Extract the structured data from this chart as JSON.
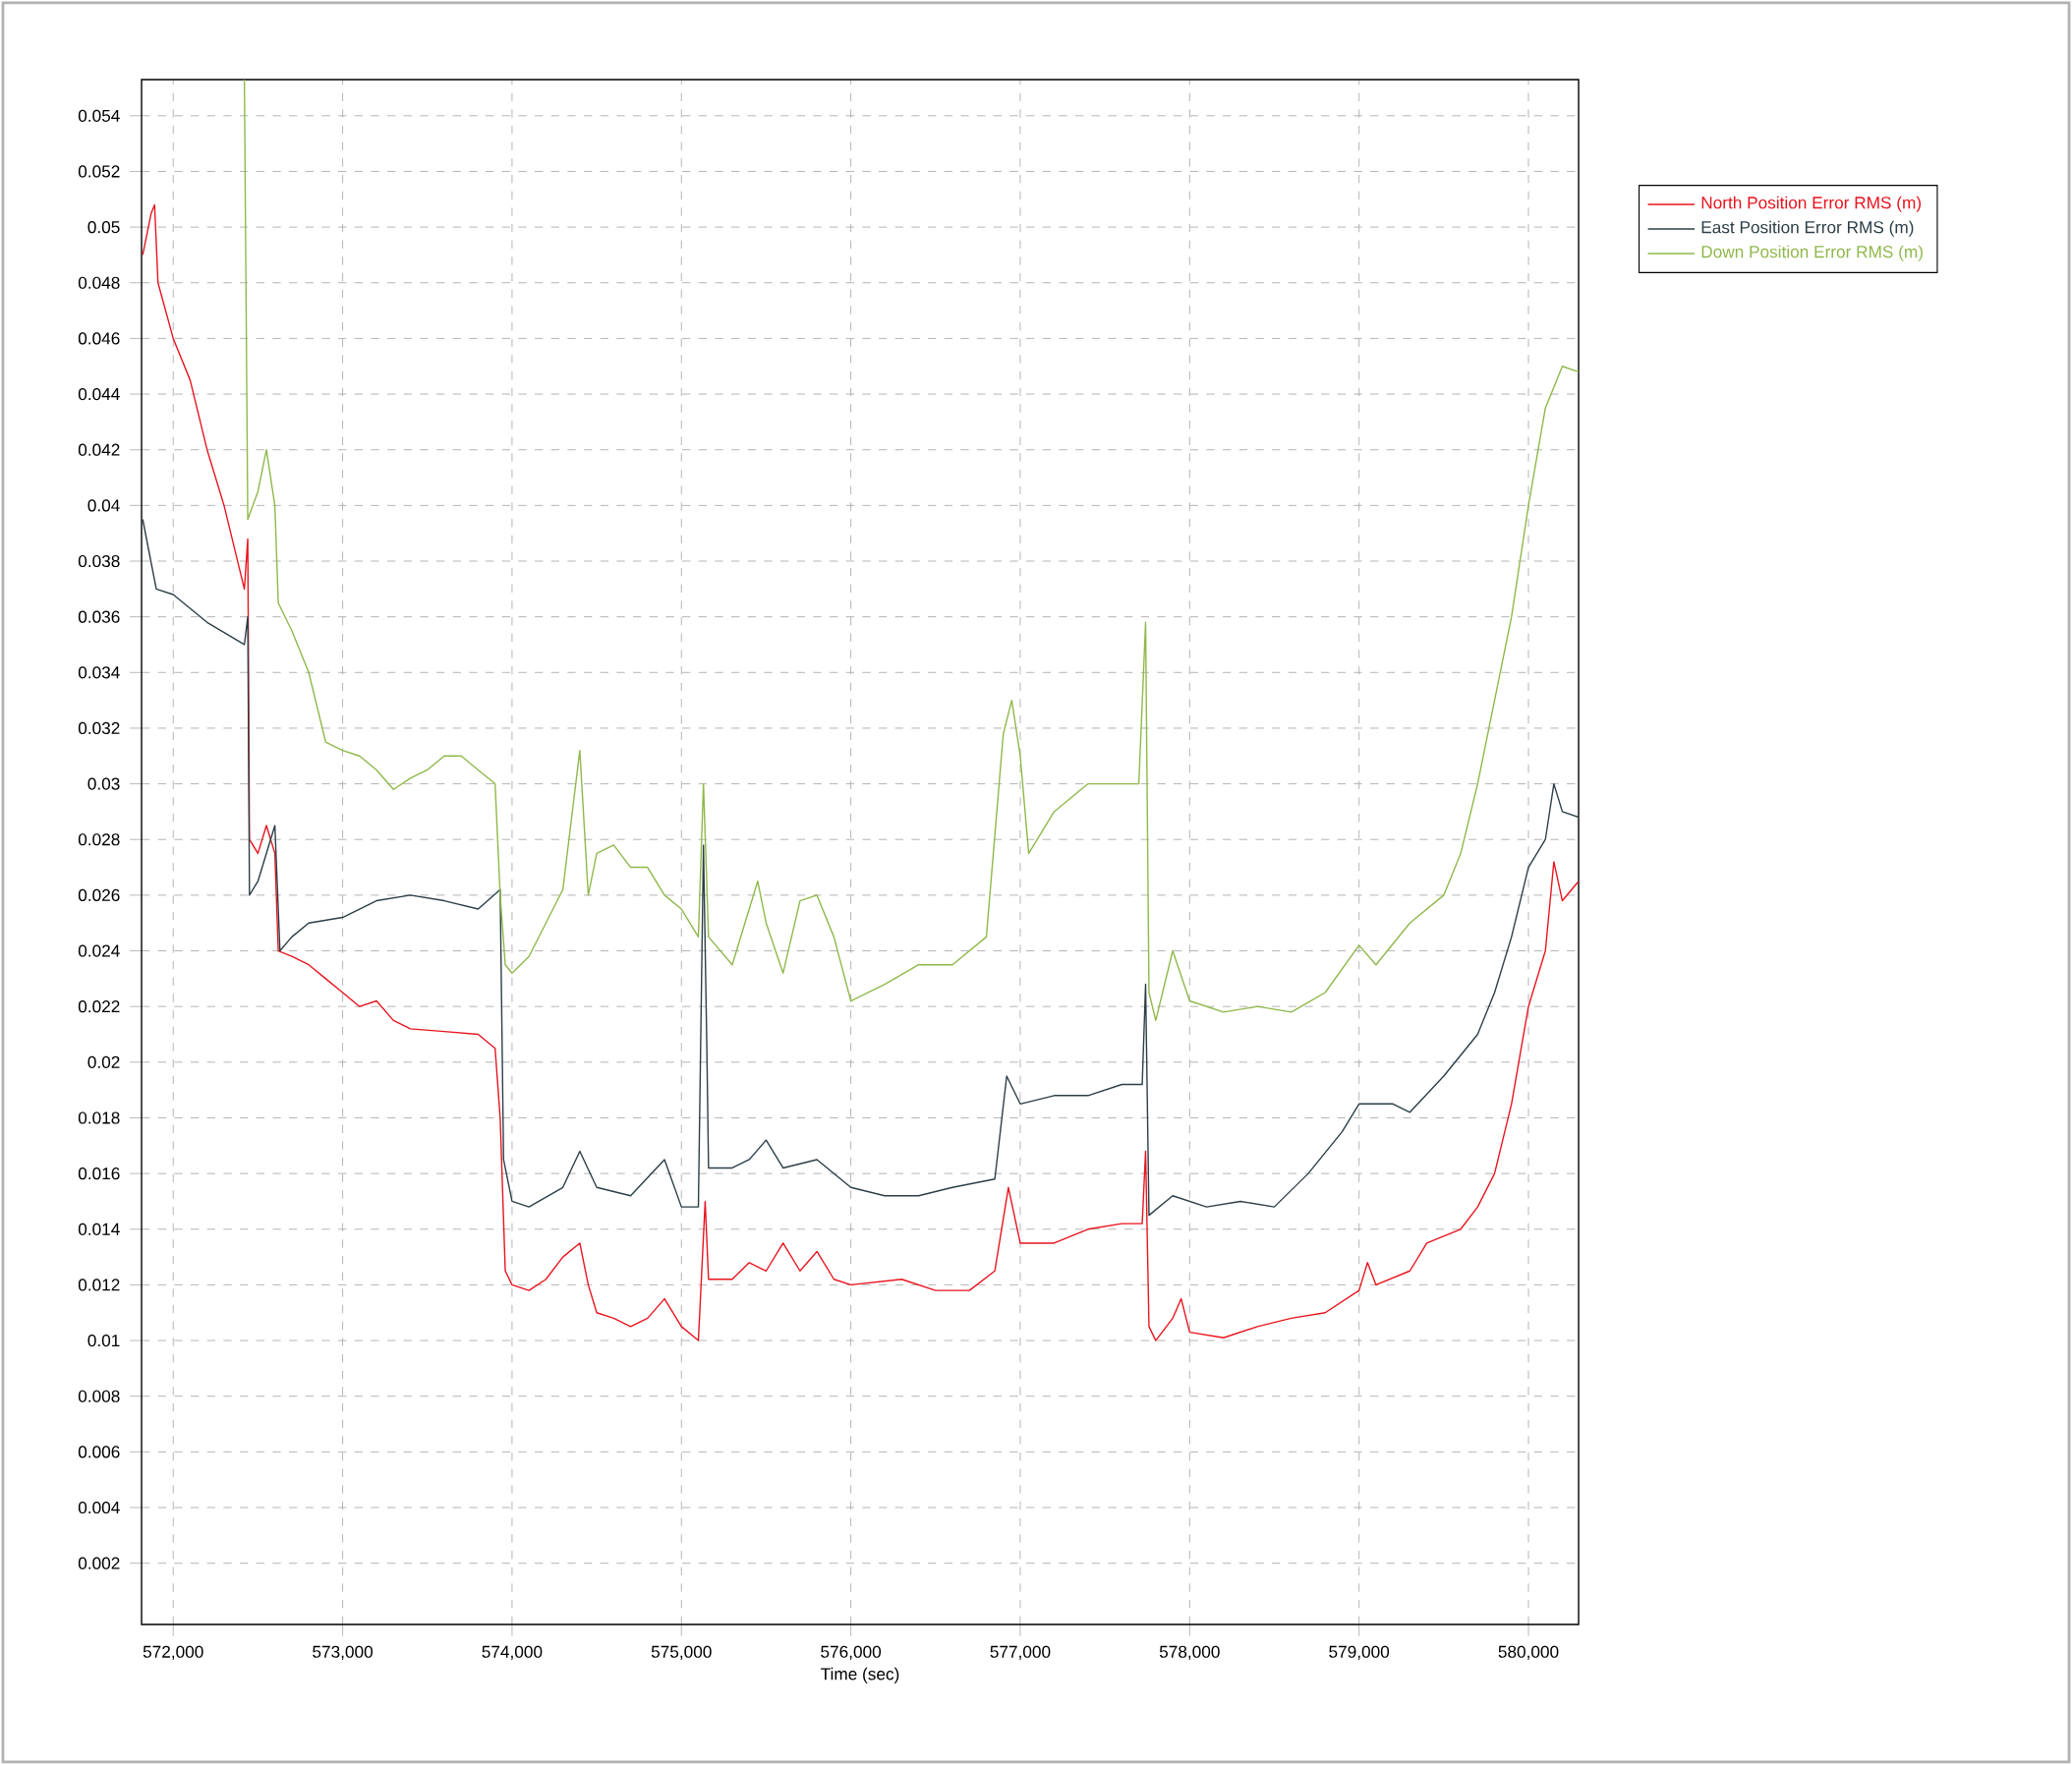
{
  "chart_data": {
    "type": "line",
    "xlabel": "Time (sec)",
    "xlim": [
      571813,
      580296
    ],
    "ylim": [
      -0.0002,
      0.0553
    ],
    "xticks": [
      {
        "value": 572000,
        "label": "572,000"
      },
      {
        "value": 573000,
        "label": "573,000"
      },
      {
        "value": 574000,
        "label": "574,000"
      },
      {
        "value": 575000,
        "label": "575,000"
      },
      {
        "value": 576000,
        "label": "576,000"
      },
      {
        "value": 577000,
        "label": "577,000"
      },
      {
        "value": 578000,
        "label": "578,000"
      },
      {
        "value": 579000,
        "label": "579,000"
      },
      {
        "value": 580000,
        "label": "580,000"
      }
    ],
    "yticks": [
      0.002,
      0.004,
      0.006,
      0.008,
      0.01,
      0.012,
      0.014,
      0.016,
      0.018,
      0.02,
      0.022,
      0.024,
      0.026,
      0.028,
      0.03,
      0.032,
      0.034,
      0.036,
      0.038,
      0.04,
      0.042,
      0.044,
      0.046,
      0.048,
      0.05,
      0.052,
      0.054
    ],
    "grid": true,
    "legend": "right",
    "line_style": "solid",
    "series": [
      {
        "name": "North Position Error RMS (m)",
        "color": "#e8141e",
        "x": [
          571820,
          571870,
          571890,
          571910,
          572000,
          572100,
          572200,
          572300,
          572420,
          572440,
          572450,
          572500,
          572550,
          572600,
          572620,
          572700,
          572800,
          572900,
          573000,
          573100,
          573200,
          573300,
          573400,
          573600,
          573800,
          573900,
          573930,
          573960,
          574000,
          574100,
          574200,
          574300,
          574400,
          574450,
          574500,
          574600,
          574700,
          574800,
          574900,
          575000,
          575100,
          575140,
          575160,
          575300,
          575400,
          575500,
          575600,
          575700,
          575800,
          575900,
          576000,
          576300,
          576500,
          576700,
          576850,
          576930,
          577000,
          577200,
          577400,
          577600,
          577720,
          577740,
          577760,
          577800,
          577900,
          577950,
          578000,
          578200,
          578400,
          578600,
          578800,
          579000,
          579050,
          579100,
          579300,
          579400,
          579600,
          579700,
          579800,
          579900,
          580000,
          580100,
          580150,
          580200,
          580296
        ],
        "values": [
          0.049,
          0.0505,
          0.0508,
          0.048,
          0.046,
          0.0445,
          0.042,
          0.04,
          0.037,
          0.0388,
          0.028,
          0.0275,
          0.0285,
          0.0275,
          0.024,
          0.0238,
          0.0235,
          0.023,
          0.0225,
          0.022,
          0.0222,
          0.0215,
          0.0212,
          0.0211,
          0.021,
          0.0205,
          0.018,
          0.0125,
          0.012,
          0.0118,
          0.0122,
          0.013,
          0.0135,
          0.012,
          0.011,
          0.0108,
          0.0105,
          0.0108,
          0.0115,
          0.0105,
          0.01,
          0.015,
          0.0122,
          0.0122,
          0.0128,
          0.0125,
          0.0135,
          0.0125,
          0.0132,
          0.0122,
          0.012,
          0.0122,
          0.0118,
          0.0118,
          0.0125,
          0.0155,
          0.0135,
          0.0135,
          0.014,
          0.0142,
          0.0142,
          0.0168,
          0.0105,
          0.01,
          0.0108,
          0.0115,
          0.0103,
          0.0101,
          0.0105,
          0.0108,
          0.011,
          0.0118,
          0.0128,
          0.012,
          0.0125,
          0.0135,
          0.014,
          0.0148,
          0.016,
          0.0185,
          0.022,
          0.024,
          0.0272,
          0.0258,
          0.0265
        ]
      },
      {
        "name": "East Position Error RMS (m)",
        "color": "#2c3e46",
        "x": [
          571820,
          571900,
          572000,
          572200,
          572420,
          572440,
          572450,
          572500,
          572600,
          572630,
          572700,
          572800,
          573000,
          573200,
          573400,
          573600,
          573800,
          573930,
          573950,
          574000,
          574100,
          574300,
          574400,
          574500,
          574700,
          574900,
          575000,
          575100,
          575130,
          575150,
          575160,
          575300,
          575400,
          575500,
          575600,
          575800,
          576000,
          576200,
          576400,
          576600,
          576850,
          576920,
          577000,
          577200,
          577400,
          577600,
          577720,
          577740,
          577760,
          577900,
          578100,
          578300,
          578500,
          578700,
          578900,
          579000,
          579200,
          579300,
          579500,
          579700,
          579800,
          579900,
          580000,
          580100,
          580150,
          580200,
          580296
        ],
        "values": [
          0.0395,
          0.037,
          0.0368,
          0.0358,
          0.035,
          0.036,
          0.026,
          0.0265,
          0.0285,
          0.024,
          0.0245,
          0.025,
          0.0252,
          0.0258,
          0.026,
          0.0258,
          0.0255,
          0.0262,
          0.0165,
          0.015,
          0.0148,
          0.0155,
          0.0168,
          0.0155,
          0.0152,
          0.0165,
          0.0148,
          0.0148,
          0.0278,
          0.0205,
          0.0162,
          0.0162,
          0.0165,
          0.0172,
          0.0162,
          0.0165,
          0.0155,
          0.0152,
          0.0152,
          0.0155,
          0.0158,
          0.0195,
          0.0185,
          0.0188,
          0.0188,
          0.0192,
          0.0192,
          0.0228,
          0.0145,
          0.0152,
          0.0148,
          0.015,
          0.0148,
          0.016,
          0.0175,
          0.0185,
          0.0185,
          0.0182,
          0.0195,
          0.021,
          0.0225,
          0.0245,
          0.027,
          0.028,
          0.03,
          0.029,
          0.0288
        ]
      },
      {
        "name": "Down Position Error RMS (m)",
        "color": "#8fb84a",
        "x": [
          572420,
          572440,
          572500,
          572550,
          572600,
          572620,
          572700,
          572800,
          572900,
          573000,
          573100,
          573200,
          573300,
          573400,
          573500,
          573600,
          573700,
          573800,
          573900,
          573930,
          573960,
          574000,
          574100,
          574200,
          574300,
          574400,
          574450,
          574500,
          574600,
          574700,
          574800,
          574900,
          575000,
          575100,
          575130,
          575160,
          575300,
          575400,
          575450,
          575500,
          575600,
          575700,
          575800,
          575900,
          576000,
          576200,
          576400,
          576600,
          576800,
          576900,
          576950,
          577000,
          577050,
          577200,
          577400,
          577600,
          577700,
          577740,
          577760,
          577800,
          577900,
          578000,
          578200,
          578400,
          578600,
          578800,
          579000,
          579100,
          579300,
          579500,
          579600,
          579700,
          579800,
          579900,
          580000,
          580100,
          580200,
          580296
        ],
        "values": [
          0.0553,
          0.0395,
          0.0405,
          0.042,
          0.04,
          0.0365,
          0.0355,
          0.034,
          0.0315,
          0.0312,
          0.031,
          0.0305,
          0.0298,
          0.0302,
          0.0305,
          0.031,
          0.031,
          0.0305,
          0.03,
          0.026,
          0.0235,
          0.0232,
          0.0238,
          0.025,
          0.0262,
          0.0312,
          0.026,
          0.0275,
          0.0278,
          0.027,
          0.027,
          0.026,
          0.0255,
          0.0245,
          0.03,
          0.0245,
          0.0235,
          0.0255,
          0.0265,
          0.025,
          0.0232,
          0.0258,
          0.026,
          0.0245,
          0.0222,
          0.0228,
          0.0235,
          0.0235,
          0.0245,
          0.0318,
          0.033,
          0.031,
          0.0275,
          0.029,
          0.03,
          0.03,
          0.03,
          0.0358,
          0.0225,
          0.0215,
          0.024,
          0.0222,
          0.0218,
          0.022,
          0.0218,
          0.0225,
          0.0242,
          0.0235,
          0.025,
          0.026,
          0.0275,
          0.03,
          0.033,
          0.036,
          0.04,
          0.0435,
          0.045,
          0.0448
        ]
      }
    ]
  }
}
